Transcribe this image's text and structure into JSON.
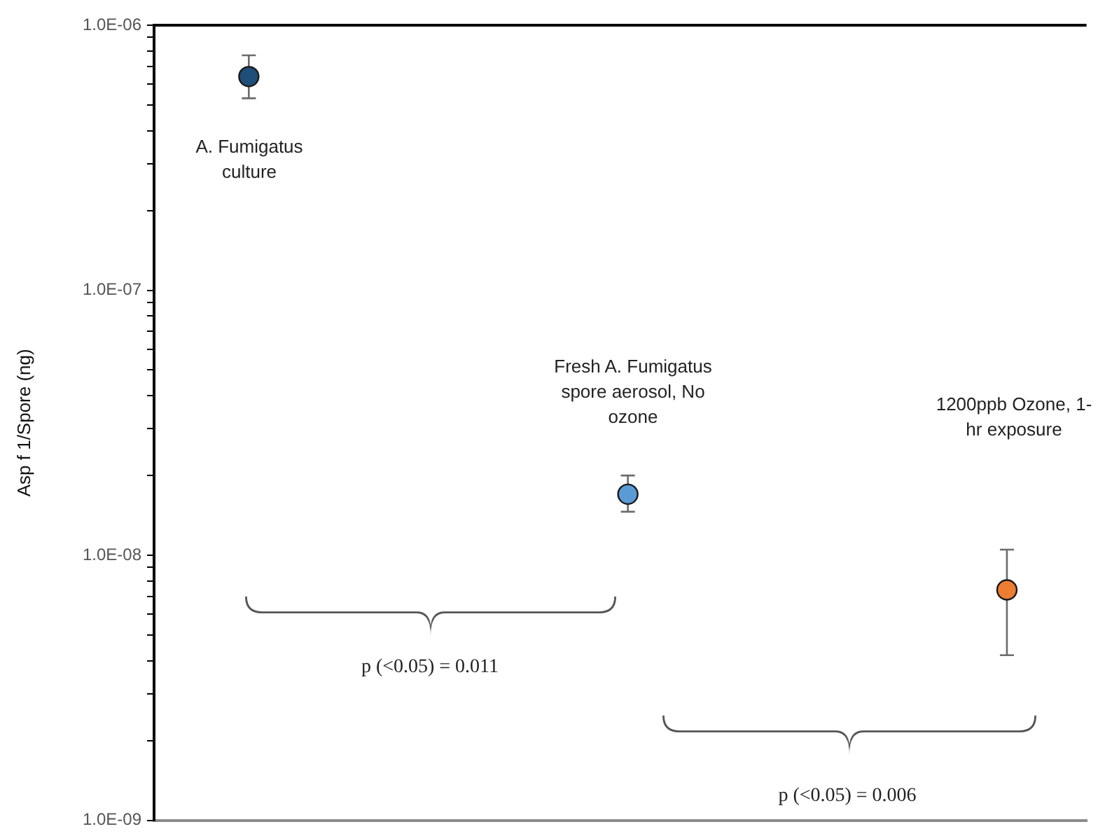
{
  "chart_data": {
    "type": "scatter",
    "ylabel": "Asp f 1/Spore (ng)",
    "categories": [
      null,
      null,
      null
    ],
    "series": [
      {
        "colors": [
          "#1f4e79",
          "#5b9bd5",
          "#ed7d31"
        ],
        "values": [
          6.4e-07,
          1.7e-08,
          7.4e-09
        ],
        "errors": [
          [
            5.3e-07,
            7.7e-07
          ],
          [
            1.46e-08,
            2e-08
          ],
          [
            4.2e-09,
            1.05e-08
          ]
        ]
      }
    ],
    "log": "y",
    "ylim": [
      1e-09,
      1e-06
    ],
    "yticks": [
      {
        "value": 1e-09,
        "label": "1.0E-09"
      },
      {
        "value": 2e-09,
        "label": null
      },
      {
        "value": 3e-09,
        "label": null
      },
      {
        "value": 4e-09,
        "label": null
      },
      {
        "value": 5e-09,
        "label": null
      },
      {
        "value": 6e-09,
        "label": null
      },
      {
        "value": 7e-09,
        "label": null
      },
      {
        "value": 8e-09,
        "label": null
      },
      {
        "value": 9e-09,
        "label": null
      },
      {
        "value": 1e-08,
        "label": "1.0E-08"
      },
      {
        "value": 2e-08,
        "label": null
      },
      {
        "value": 3e-08,
        "label": null
      },
      {
        "value": 4e-08,
        "label": null
      },
      {
        "value": 5e-08,
        "label": null
      },
      {
        "value": 6e-08,
        "label": null
      },
      {
        "value": 7e-08,
        "label": null
      },
      {
        "value": 8e-08,
        "label": null
      },
      {
        "value": 9e-08,
        "label": null
      },
      {
        "value": 1e-07,
        "label": "1.0E-07"
      },
      {
        "value": 2e-07,
        "label": null
      },
      {
        "value": 3e-07,
        "label": null
      },
      {
        "value": 4e-07,
        "label": null
      },
      {
        "value": 5e-07,
        "label": null
      },
      {
        "value": 6e-07,
        "label": null
      },
      {
        "value": 7e-07,
        "label": null
      },
      {
        "value": 8e-07,
        "label": null
      },
      {
        "value": 9e-07,
        "label": null
      },
      {
        "value": 1e-06,
        "label": "1.0E-06"
      }
    ],
    "grid": false,
    "marker": "circle",
    "annotations": [
      "A. Fumigatus culture",
      "Fresh A. Fumigatus spore aerosol, No ozone",
      "1200ppb Ozone, 1-hr exposure",
      "p (<0.05) = 0.011",
      "p (<0.05) = 0.006"
    ]
  }
}
